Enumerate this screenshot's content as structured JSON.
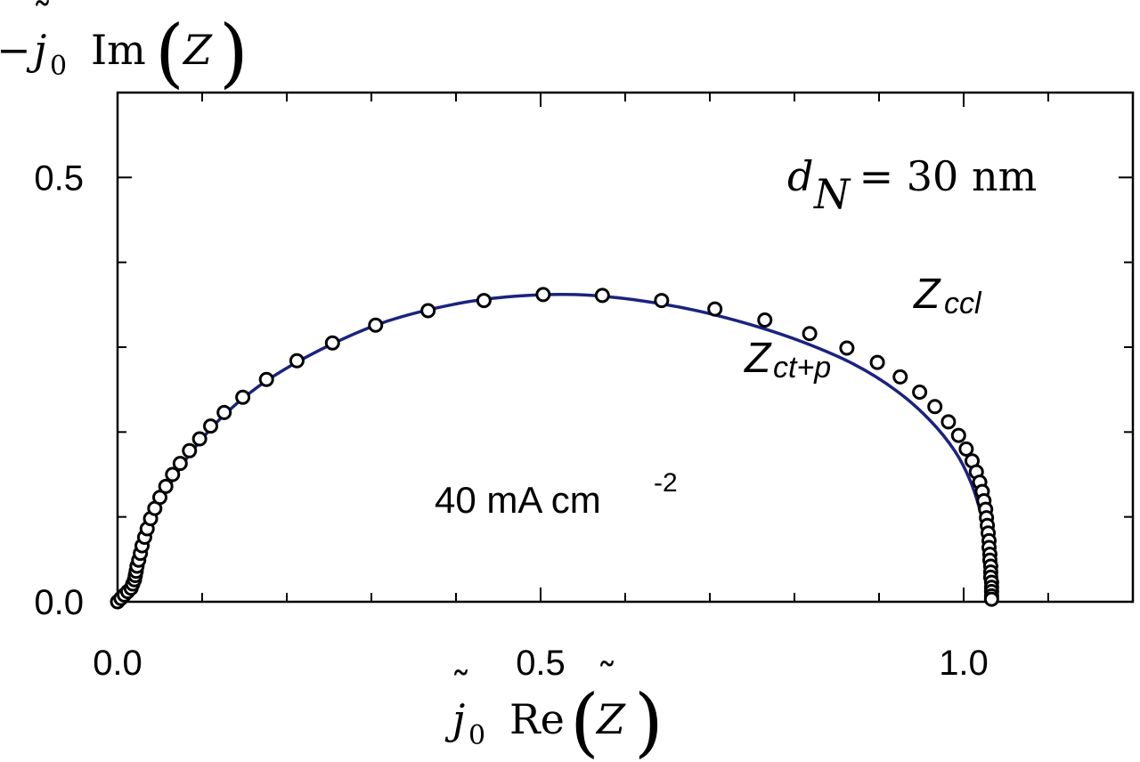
{
  "chart_data": {
    "type": "scatter",
    "xlabel": {
      "prefix": "j",
      "prefix_sub": "0",
      "op": "Re",
      "var": "Z"
    },
    "ylabel": {
      "sign": "−",
      "prefix": "j",
      "prefix_sub": "0",
      "op": "Im",
      "var": "Z"
    },
    "xlim": [
      0,
      1.2
    ],
    "ylim": [
      0,
      0.6
    ],
    "x_ticks": [
      "0.0",
      "0.5",
      "1.0"
    ],
    "y_ticks": [
      "0.0",
      "0.5"
    ],
    "annotations": {
      "thickness": {
        "var": "d",
        "sub": "N",
        "rest": " = 30 nm"
      },
      "z_ccl": {
        "main": "Z",
        "sub": "ccl"
      },
      "z_ctp": {
        "main": "Z",
        "sub": "ct+p"
      },
      "current": {
        "text": "40 mA cm",
        "sup": "-2"
      }
    },
    "series": [
      {
        "style": "markers",
        "color": "#000000",
        "points": [
          [
            0.0,
            0.0
          ],
          [
            0.004,
            0.004
          ],
          [
            0.008,
            0.008
          ],
          [
            0.012,
            0.012
          ],
          [
            0.016,
            0.016
          ],
          [
            0.018,
            0.021
          ],
          [
            0.02,
            0.026
          ],
          [
            0.021,
            0.031
          ],
          [
            0.022,
            0.036
          ],
          [
            0.023,
            0.042
          ],
          [
            0.025,
            0.049
          ],
          [
            0.027,
            0.057
          ],
          [
            0.029,
            0.066
          ],
          [
            0.032,
            0.076
          ],
          [
            0.035,
            0.086
          ],
          [
            0.039,
            0.098
          ],
          [
            0.044,
            0.11
          ],
          [
            0.05,
            0.123
          ],
          [
            0.057,
            0.136
          ],
          [
            0.065,
            0.15
          ],
          [
            0.074,
            0.163
          ],
          [
            0.085,
            0.178
          ],
          [
            0.097,
            0.192
          ],
          [
            0.11,
            0.207
          ],
          [
            0.126,
            0.223
          ],
          [
            0.148,
            0.241
          ],
          [
            0.176,
            0.262
          ],
          [
            0.212,
            0.284
          ],
          [
            0.254,
            0.305
          ],
          [
            0.305,
            0.326
          ],
          [
            0.367,
            0.343
          ],
          [
            0.433,
            0.355
          ],
          [
            0.503,
            0.362
          ],
          [
            0.573,
            0.361
          ],
          [
            0.643,
            0.355
          ],
          [
            0.706,
            0.345
          ],
          [
            0.765,
            0.332
          ],
          [
            0.818,
            0.316
          ],
          [
            0.862,
            0.299
          ],
          [
            0.898,
            0.282
          ],
          [
            0.925,
            0.265
          ],
          [
            0.948,
            0.247
          ],
          [
            0.966,
            0.23
          ],
          [
            0.982,
            0.212
          ],
          [
            0.994,
            0.196
          ],
          [
            1.003,
            0.18
          ],
          [
            1.01,
            0.166
          ],
          [
            1.015,
            0.153
          ],
          [
            1.019,
            0.141
          ],
          [
            1.022,
            0.13
          ],
          [
            1.024,
            0.119
          ],
          [
            1.026,
            0.109
          ],
          [
            1.027,
            0.099
          ],
          [
            1.028,
            0.09
          ],
          [
            1.029,
            0.081
          ],
          [
            1.03,
            0.072
          ],
          [
            1.03,
            0.064
          ],
          [
            1.031,
            0.056
          ],
          [
            1.031,
            0.049
          ],
          [
            1.032,
            0.042
          ],
          [
            1.032,
            0.035
          ],
          [
            1.032,
            0.029
          ],
          [
            1.033,
            0.023
          ],
          [
            1.033,
            0.017
          ],
          [
            1.033,
            0.012
          ],
          [
            1.033,
            0.007
          ],
          [
            1.033,
            0.003
          ]
        ]
      },
      {
        "style": "line",
        "color": "#1a237e",
        "points": [
          [
            0.0,
            0.0
          ],
          [
            0.01,
            0.009
          ],
          [
            0.02,
            0.025
          ],
          [
            0.03,
            0.065
          ],
          [
            0.04,
            0.095
          ],
          [
            0.06,
            0.135
          ],
          [
            0.09,
            0.18
          ],
          [
            0.13,
            0.224
          ],
          [
            0.18,
            0.263
          ],
          [
            0.25,
            0.302
          ],
          [
            0.32,
            0.331
          ],
          [
            0.4,
            0.351
          ],
          [
            0.47,
            0.36
          ],
          [
            0.54,
            0.362
          ],
          [
            0.61,
            0.356
          ],
          [
            0.68,
            0.344
          ],
          [
            0.75,
            0.326
          ],
          [
            0.81,
            0.306
          ],
          [
            0.87,
            0.28
          ],
          [
            0.92,
            0.249
          ],
          [
            0.96,
            0.214
          ],
          [
            0.99,
            0.177
          ],
          [
            1.008,
            0.142
          ],
          [
            1.02,
            0.105
          ],
          [
            1.027,
            0.07
          ],
          [
            1.031,
            0.035
          ],
          [
            1.033,
            0.0
          ]
        ]
      }
    ]
  }
}
